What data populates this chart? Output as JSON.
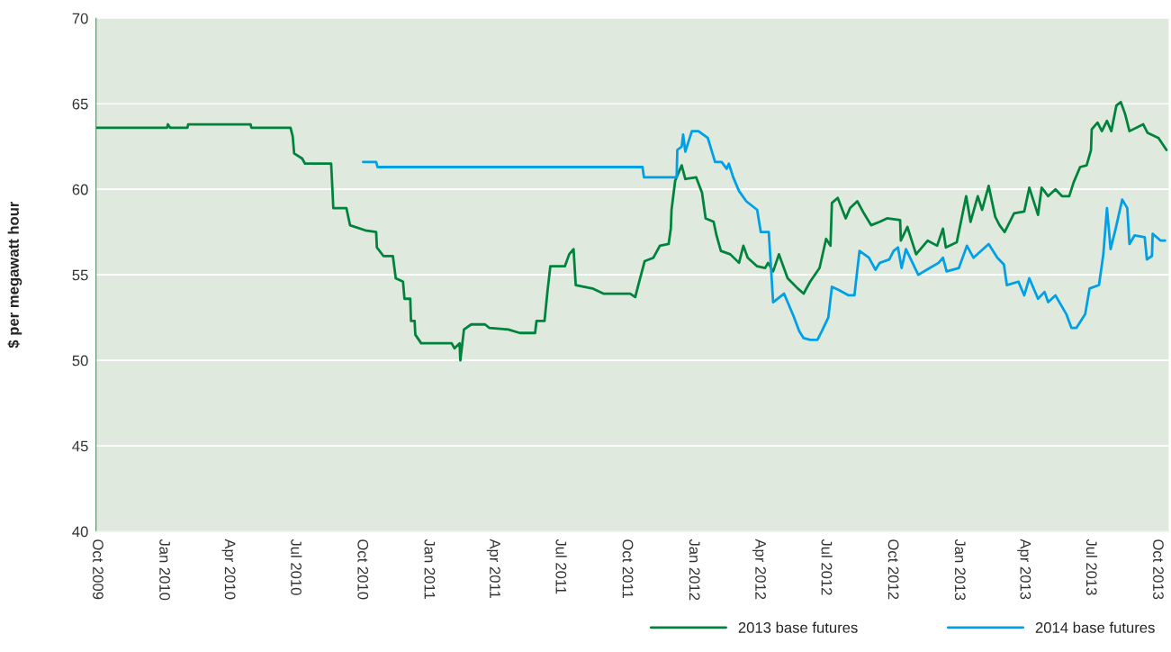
{
  "chart_data": {
    "type": "line",
    "ylabel": "$ per megawatt hour",
    "xlim": [
      "2009-09-30",
      "2013-10-17"
    ],
    "ylim": [
      40,
      70
    ],
    "yticks": [
      40,
      45,
      50,
      55,
      60,
      65,
      70
    ],
    "xticks": [
      {
        "value": "2009-10-01",
        "label": "Oct 2009"
      },
      {
        "value": "2010-01-01",
        "label": "Jan 2010"
      },
      {
        "value": "2010-04-01",
        "label": "Apr 2010"
      },
      {
        "value": "2010-07-01",
        "label": "Jul 2010"
      },
      {
        "value": "2010-10-01",
        "label": "Oct 2010"
      },
      {
        "value": "2011-01-01",
        "label": "Jan 2011"
      },
      {
        "value": "2011-04-01",
        "label": "Apr 2011"
      },
      {
        "value": "2011-07-01",
        "label": "Jul 2011"
      },
      {
        "value": "2011-10-01",
        "label": "Oct 2011"
      },
      {
        "value": "2012-01-01",
        "label": "Jan 2012"
      },
      {
        "value": "2012-04-01",
        "label": "Apr 2012"
      },
      {
        "value": "2012-07-01",
        "label": "Jul 2012"
      },
      {
        "value": "2012-10-01",
        "label": "Oct 2012"
      },
      {
        "value": "2013-01-01",
        "label": "Jan 2013"
      },
      {
        "value": "2013-04-01",
        "label": "Apr 2013"
      },
      {
        "value": "2013-07-01",
        "label": "Jul 2013"
      },
      {
        "value": "2013-10-01",
        "label": "Oct 2013"
      }
    ],
    "grid": "y",
    "legend": "bottom right",
    "marker": "none",
    "line_style": "solid",
    "series": [
      {
        "name": "2013 base futures",
        "color": "#00843d",
        "x": [
          "2009-10-01",
          "2010-01-06",
          "2010-01-07",
          "2010-01-10",
          "2010-02-03",
          "2010-02-04",
          "2010-05-01",
          "2010-05-02",
          "2010-06-25",
          "2010-06-28",
          "2010-06-30",
          "2010-07-11",
          "2010-07-15",
          "2010-08-20",
          "2010-08-23",
          "2010-09-10",
          "2010-09-15",
          "2010-10-06",
          "2010-10-21",
          "2010-10-22",
          "2010-10-31",
          "2010-11-13",
          "2010-11-17",
          "2010-11-27",
          "2010-11-29",
          "2010-12-07",
          "2010-12-08",
          "2010-12-13",
          "2010-12-14",
          "2010-12-22",
          "2011-02-02",
          "2011-02-06",
          "2011-02-13",
          "2011-02-14",
          "2011-02-19",
          "2011-03-01",
          "2011-03-20",
          "2011-03-26",
          "2011-04-21",
          "2011-05-07",
          "2011-05-28",
          "2011-05-30",
          "2011-06-10",
          "2011-06-14",
          "2011-06-18",
          "2011-07-08",
          "2011-07-14",
          "2011-07-20",
          "2011-07-23",
          "2011-08-15",
          "2011-08-30",
          "2011-10-06",
          "2011-10-13",
          "2011-10-16",
          "2011-10-26",
          "2011-11-07",
          "2011-11-16",
          "2011-11-28",
          "2011-12-01",
          "2011-12-02",
          "2011-12-07",
          "2011-12-16",
          "2011-12-21",
          "2012-01-05",
          "2012-01-13",
          "2012-01-18",
          "2012-01-29",
          "2012-02-02",
          "2012-02-08",
          "2012-02-21",
          "2012-03-04",
          "2012-03-10",
          "2012-03-16",
          "2012-03-29",
          "2012-04-09",
          "2012-04-13",
          "2012-04-20",
          "2012-04-28",
          "2012-05-10",
          "2012-05-24",
          "2012-06-01",
          "2012-06-10",
          "2012-06-23",
          "2012-07-02",
          "2012-07-08",
          "2012-07-10",
          "2012-07-18",
          "2012-07-29",
          "2012-08-04",
          "2012-08-14",
          "2012-08-23",
          "2012-09-02",
          "2012-09-14",
          "2012-09-24",
          "2012-10-12",
          "2012-10-13",
          "2012-10-22",
          "2012-11-03",
          "2012-11-19",
          "2012-12-02",
          "2012-12-10",
          "2012-12-14",
          "2012-12-29",
          "2013-01-11",
          "2013-01-17",
          "2013-01-27",
          "2013-02-02",
          "2013-02-11",
          "2013-02-20",
          "2013-02-26",
          "2013-03-05",
          "2013-03-18",
          "2013-04-01",
          "2013-04-08",
          "2013-04-20",
          "2013-04-25",
          "2013-05-04",
          "2013-05-14",
          "2013-05-23",
          "2013-06-02",
          "2013-06-08",
          "2013-06-17",
          "2013-06-26",
          "2013-07-02",
          "2013-07-03",
          "2013-07-11",
          "2013-07-17",
          "2013-07-24",
          "2013-07-30",
          "2013-08-06",
          "2013-08-12",
          "2013-08-18",
          "2013-08-24",
          "2013-09-12",
          "2013-09-18",
          "2013-10-03",
          "2013-10-14"
        ],
        "values": [
          63.6,
          63.6,
          63.8,
          63.6,
          63.6,
          63.8,
          63.8,
          63.6,
          63.6,
          63.1,
          62.1,
          61.8,
          61.5,
          61.5,
          58.9,
          58.9,
          57.9,
          57.6,
          57.5,
          56.6,
          56.1,
          56.1,
          54.8,
          54.6,
          53.6,
          53.6,
          52.3,
          52.3,
          51.5,
          51.0,
          51.0,
          50.7,
          51.0,
          50.0,
          51.8,
          52.1,
          52.1,
          51.9,
          51.8,
          51.6,
          51.6,
          52.3,
          52.3,
          54.0,
          55.5,
          55.5,
          56.2,
          56.5,
          54.4,
          54.2,
          53.9,
          53.9,
          53.7,
          54.2,
          55.8,
          56.0,
          56.7,
          56.8,
          57.7,
          58.8,
          60.5,
          61.4,
          60.6,
          60.7,
          59.8,
          58.3,
          58.1,
          57.3,
          56.4,
          56.2,
          55.7,
          56.7,
          56.0,
          55.5,
          55.4,
          55.7,
          55.2,
          56.2,
          54.8,
          54.2,
          53.9,
          54.6,
          55.4,
          57.1,
          56.7,
          59.2,
          59.5,
          58.3,
          58.9,
          59.3,
          58.6,
          57.9,
          58.1,
          58.3,
          58.2,
          57.0,
          57.8,
          56.2,
          57.0,
          56.7,
          57.7,
          56.6,
          56.9,
          59.6,
          58.1,
          59.6,
          58.8,
          60.2,
          58.4,
          57.9,
          57.5,
          58.6,
          58.7,
          60.1,
          58.5,
          60.1,
          59.6,
          60.0,
          59.6,
          59.6,
          60.4,
          61.3,
          61.4,
          62.3,
          63.5,
          63.9,
          63.4,
          64.0,
          63.4,
          64.9,
          65.1,
          64.4,
          63.4,
          63.8,
          63.3,
          63.0,
          62.3
        ]
      },
      {
        "name": "2014 base futures",
        "color": "#00a0e6",
        "x": [
          "2010-10-03",
          "2010-10-21",
          "2010-10-23",
          "2011-10-23",
          "2011-10-25",
          "2011-12-09",
          "2011-12-10",
          "2011-12-16",
          "2011-12-18",
          "2011-12-21",
          "2011-12-30",
          "2012-01-08",
          "2012-01-21",
          "2012-01-31",
          "2012-02-09",
          "2012-02-16",
          "2012-02-19",
          "2012-02-25",
          "2012-03-04",
          "2012-03-14",
          "2012-03-29",
          "2012-04-03",
          "2012-04-14",
          "2012-04-20",
          "2012-05-05",
          "2012-05-18",
          "2012-05-26",
          "2012-06-01",
          "2012-06-10",
          "2012-06-20",
          "2012-06-26",
          "2012-07-05",
          "2012-07-10",
          "2012-07-20",
          "2012-08-02",
          "2012-08-10",
          "2012-08-17",
          "2012-08-30",
          "2012-09-08",
          "2012-09-14",
          "2012-09-27",
          "2012-10-03",
          "2012-10-09",
          "2012-10-14",
          "2012-10-20",
          "2012-11-06",
          "2012-11-22",
          "2012-12-04",
          "2012-12-10",
          "2012-12-15",
          "2013-01-01",
          "2013-01-12",
          "2013-01-21",
          "2013-02-11",
          "2013-02-23",
          "2013-03-04",
          "2013-03-08",
          "2013-03-24",
          "2013-04-01",
          "2013-04-08",
          "2013-04-20",
          "2013-04-29",
          "2013-05-04",
          "2013-05-14",
          "2013-05-29",
          "2013-06-05",
          "2013-06-12",
          "2013-06-24",
          "2013-06-30",
          "2013-07-13",
          "2013-07-19",
          "2013-07-24",
          "2013-07-29",
          "2013-08-05",
          "2013-08-14",
          "2013-08-21",
          "2013-08-24",
          "2013-08-31",
          "2013-09-14",
          "2013-09-17",
          "2013-09-24",
          "2013-09-25",
          "2013-10-06",
          "2013-10-12"
        ],
        "values": [
          61.6,
          61.6,
          61.3,
          61.3,
          60.7,
          60.7,
          62.3,
          62.5,
          63.2,
          62.2,
          63.4,
          63.4,
          63.0,
          61.6,
          61.6,
          61.2,
          61.5,
          60.7,
          59.9,
          59.3,
          58.8,
          57.5,
          57.5,
          53.4,
          53.9,
          52.6,
          51.7,
          51.3,
          51.2,
          51.2,
          51.7,
          52.5,
          54.3,
          54.1,
          53.8,
          53.8,
          56.4,
          56.0,
          55.3,
          55.7,
          55.9,
          56.4,
          56.6,
          55.4,
          56.5,
          55.0,
          55.4,
          55.7,
          56.0,
          55.2,
          55.4,
          56.7,
          56.0,
          56.8,
          56.0,
          55.6,
          54.4,
          54.6,
          53.8,
          54.8,
          53.6,
          54.0,
          53.4,
          53.8,
          52.7,
          51.9,
          51.9,
          52.7,
          54.2,
          54.4,
          56.2,
          58.9,
          56.5,
          57.7,
          59.4,
          58.9,
          56.8,
          57.3,
          57.2,
          55.9,
          56.1,
          57.4,
          57.0,
          57.0
        ]
      }
    ]
  }
}
